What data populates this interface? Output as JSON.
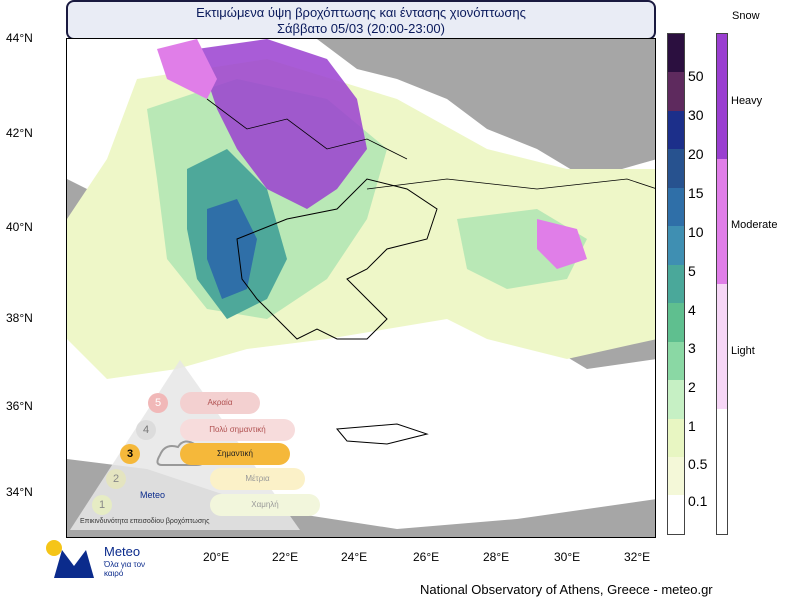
{
  "title": {
    "line1": "Εκτιμώμενα ύψη βροχόπτωσης και έντασης χιονόπτωσης",
    "line2": "Σάββατο 05/03 (20:00-23:00)"
  },
  "axes": {
    "lat_labels": [
      "44°N",
      "42°N",
      "40°N",
      "38°N",
      "36°N",
      "34°N"
    ],
    "lon_labels": [
      "20°E",
      "22°E",
      "24°E",
      "26°E",
      "28°E",
      "30°E",
      "32°E"
    ]
  },
  "precip_scale": {
    "labels": [
      "50",
      "30",
      "20",
      "15",
      "10",
      "5",
      "4",
      "3",
      "2",
      "1",
      "0.5",
      "0.1"
    ],
    "colors": [
      "#2b0f3f",
      "#5e2a5e",
      "#1c2f8a",
      "#27528f",
      "#2f6fa8",
      "#3f8fb2",
      "#4aa89a",
      "#5fbf8f",
      "#8ad8a4",
      "#c6f0c4",
      "#e8f6c2",
      "#f4f8d8",
      "#ffffff"
    ]
  },
  "snow_scale": {
    "title": "Snow",
    "labels": [
      "Heavy",
      "Moderate",
      "Light"
    ],
    "colors": [
      "#9a3fd0",
      "#e07ee8",
      "#f6d6f6",
      "#ffffff"
    ]
  },
  "footer": "National Observatory of Athens, Greece - meteo.gr",
  "logo": {
    "name": "Meteo",
    "tagline": "Όλα για τον καιρό"
  },
  "severity_overlay": {
    "tiers": [
      {
        "num": "5",
        "label": "Ακραία"
      },
      {
        "num": "4",
        "label": "Πολύ σημαντική"
      },
      {
        "num": "3",
        "label": "Σημαντική"
      },
      {
        "num": "2",
        "label": "Μέτρια"
      },
      {
        "num": "1",
        "label": "Χαμηλή"
      }
    ],
    "caption": "Επικινδυνότητα επεισοδίου βροχόπτωσης",
    "brand": "Meteo"
  }
}
